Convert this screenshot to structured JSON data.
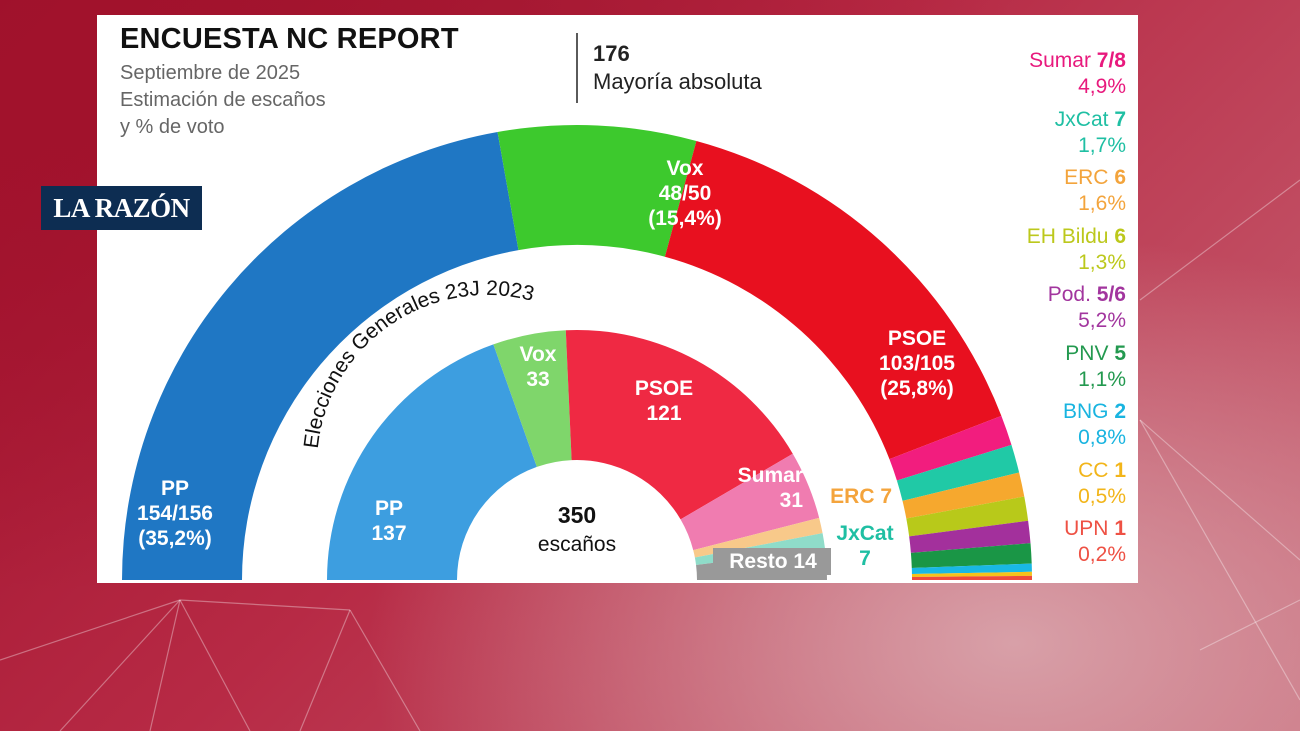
{
  "header": {
    "title": "ENCUESTA NC REPORT",
    "subtitle": [
      "Septiembre de 2025",
      "Estimación de escaños",
      "y % de voto"
    ],
    "majority_number": "176",
    "majority_label": "Mayoría absoluta",
    "logo": "LA RAZÓN"
  },
  "center_label": {
    "number": "350",
    "text": "escaños"
  },
  "inner_title": "Elecciones Generales 23J 2023",
  "chart_data": [
    {
      "type": "parliament-semicircle",
      "title": "ENCUESTA NC REPORT",
      "total_seats": 350,
      "majority": 176,
      "series": [
        {
          "party": "PP",
          "seats": "154/156",
          "seats_mid": 155,
          "pct": "35,2%",
          "color": "#1f77c4",
          "text_color": "#ffffff"
        },
        {
          "party": "Vox",
          "seats": "48/50",
          "seats_mid": 49,
          "pct": "15,4%",
          "color": "#3dc92d",
          "text_color": "#ffffff"
        },
        {
          "party": "PSOE",
          "seats": "103/105",
          "seats_mid": 104,
          "pct": "25,8%",
          "color": "#e8101f",
          "text_color": "#ffffff"
        },
        {
          "party": "Sumar",
          "seats": "7/8",
          "seats_mid": 7.5,
          "pct": "4,9%",
          "color": "#f21d7e",
          "text_color": "#e8197d"
        },
        {
          "party": "JxCat",
          "seats": "7",
          "seats_mid": 7,
          "pct": "1,7%",
          "color": "#20c9a6",
          "text_color": "#1fbfa3"
        },
        {
          "party": "ERC",
          "seats": "6",
          "seats_mid": 6,
          "pct": "1,6%",
          "color": "#f6a82e",
          "text_color": "#f3a43c"
        },
        {
          "party": "EH Bildu",
          "seats": "6",
          "seats_mid": 6,
          "pct": "1,3%",
          "color": "#b8c91a",
          "text_color": "#bcc81c"
        },
        {
          "party": "Pod.",
          "seats": "5/6",
          "seats_mid": 5.5,
          "pct": "5,2%",
          "color": "#a3309c",
          "text_color": "#a2359e"
        },
        {
          "party": "PNV",
          "seats": "5",
          "seats_mid": 5,
          "pct": "1,1%",
          "color": "#1a9646",
          "text_color": "#23994f"
        },
        {
          "party": "BNG",
          "seats": "2",
          "seats_mid": 2,
          "pct": "0,8%",
          "color": "#19b8e4",
          "text_color": "#19b4e0"
        },
        {
          "party": "CC",
          "seats": "1",
          "seats_mid": 1,
          "pct": "0,5%",
          "color": "#f6c21a",
          "text_color": "#f2b51a"
        },
        {
          "party": "UPN",
          "seats": "1",
          "seats_mid": 1,
          "pct": "0,2%",
          "color": "#ef4b3c",
          "text_color": "#ee5144"
        }
      ]
    },
    {
      "type": "parliament-semicircle",
      "title": "Elecciones Generales 23J 2023",
      "total_seats": 350,
      "series": [
        {
          "party": "PP",
          "seats": 137,
          "color": "#3d9ee0",
          "label_color": "#ffffff"
        },
        {
          "party": "Vox",
          "seats": 33,
          "color": "#7fd66b",
          "label_color": "#ffffff"
        },
        {
          "party": "PSOE",
          "seats": 121,
          "color": "#ef2943",
          "label_color": "#ffffff"
        },
        {
          "party": "Sumar",
          "seats": 31,
          "color": "#f07cb0",
          "label_color": "#ffffff"
        },
        {
          "party": "ERC",
          "seats": 7,
          "color": "#f8c98a",
          "label_color": "#f4a43c"
        },
        {
          "party": "JxCat",
          "seats": 7,
          "color": "#8fdcc9",
          "label_color": "#1fbfa3"
        },
        {
          "party": "Resto",
          "seats": 14,
          "color": "#999999",
          "label_color": "#ffffff"
        }
      ]
    }
  ]
}
